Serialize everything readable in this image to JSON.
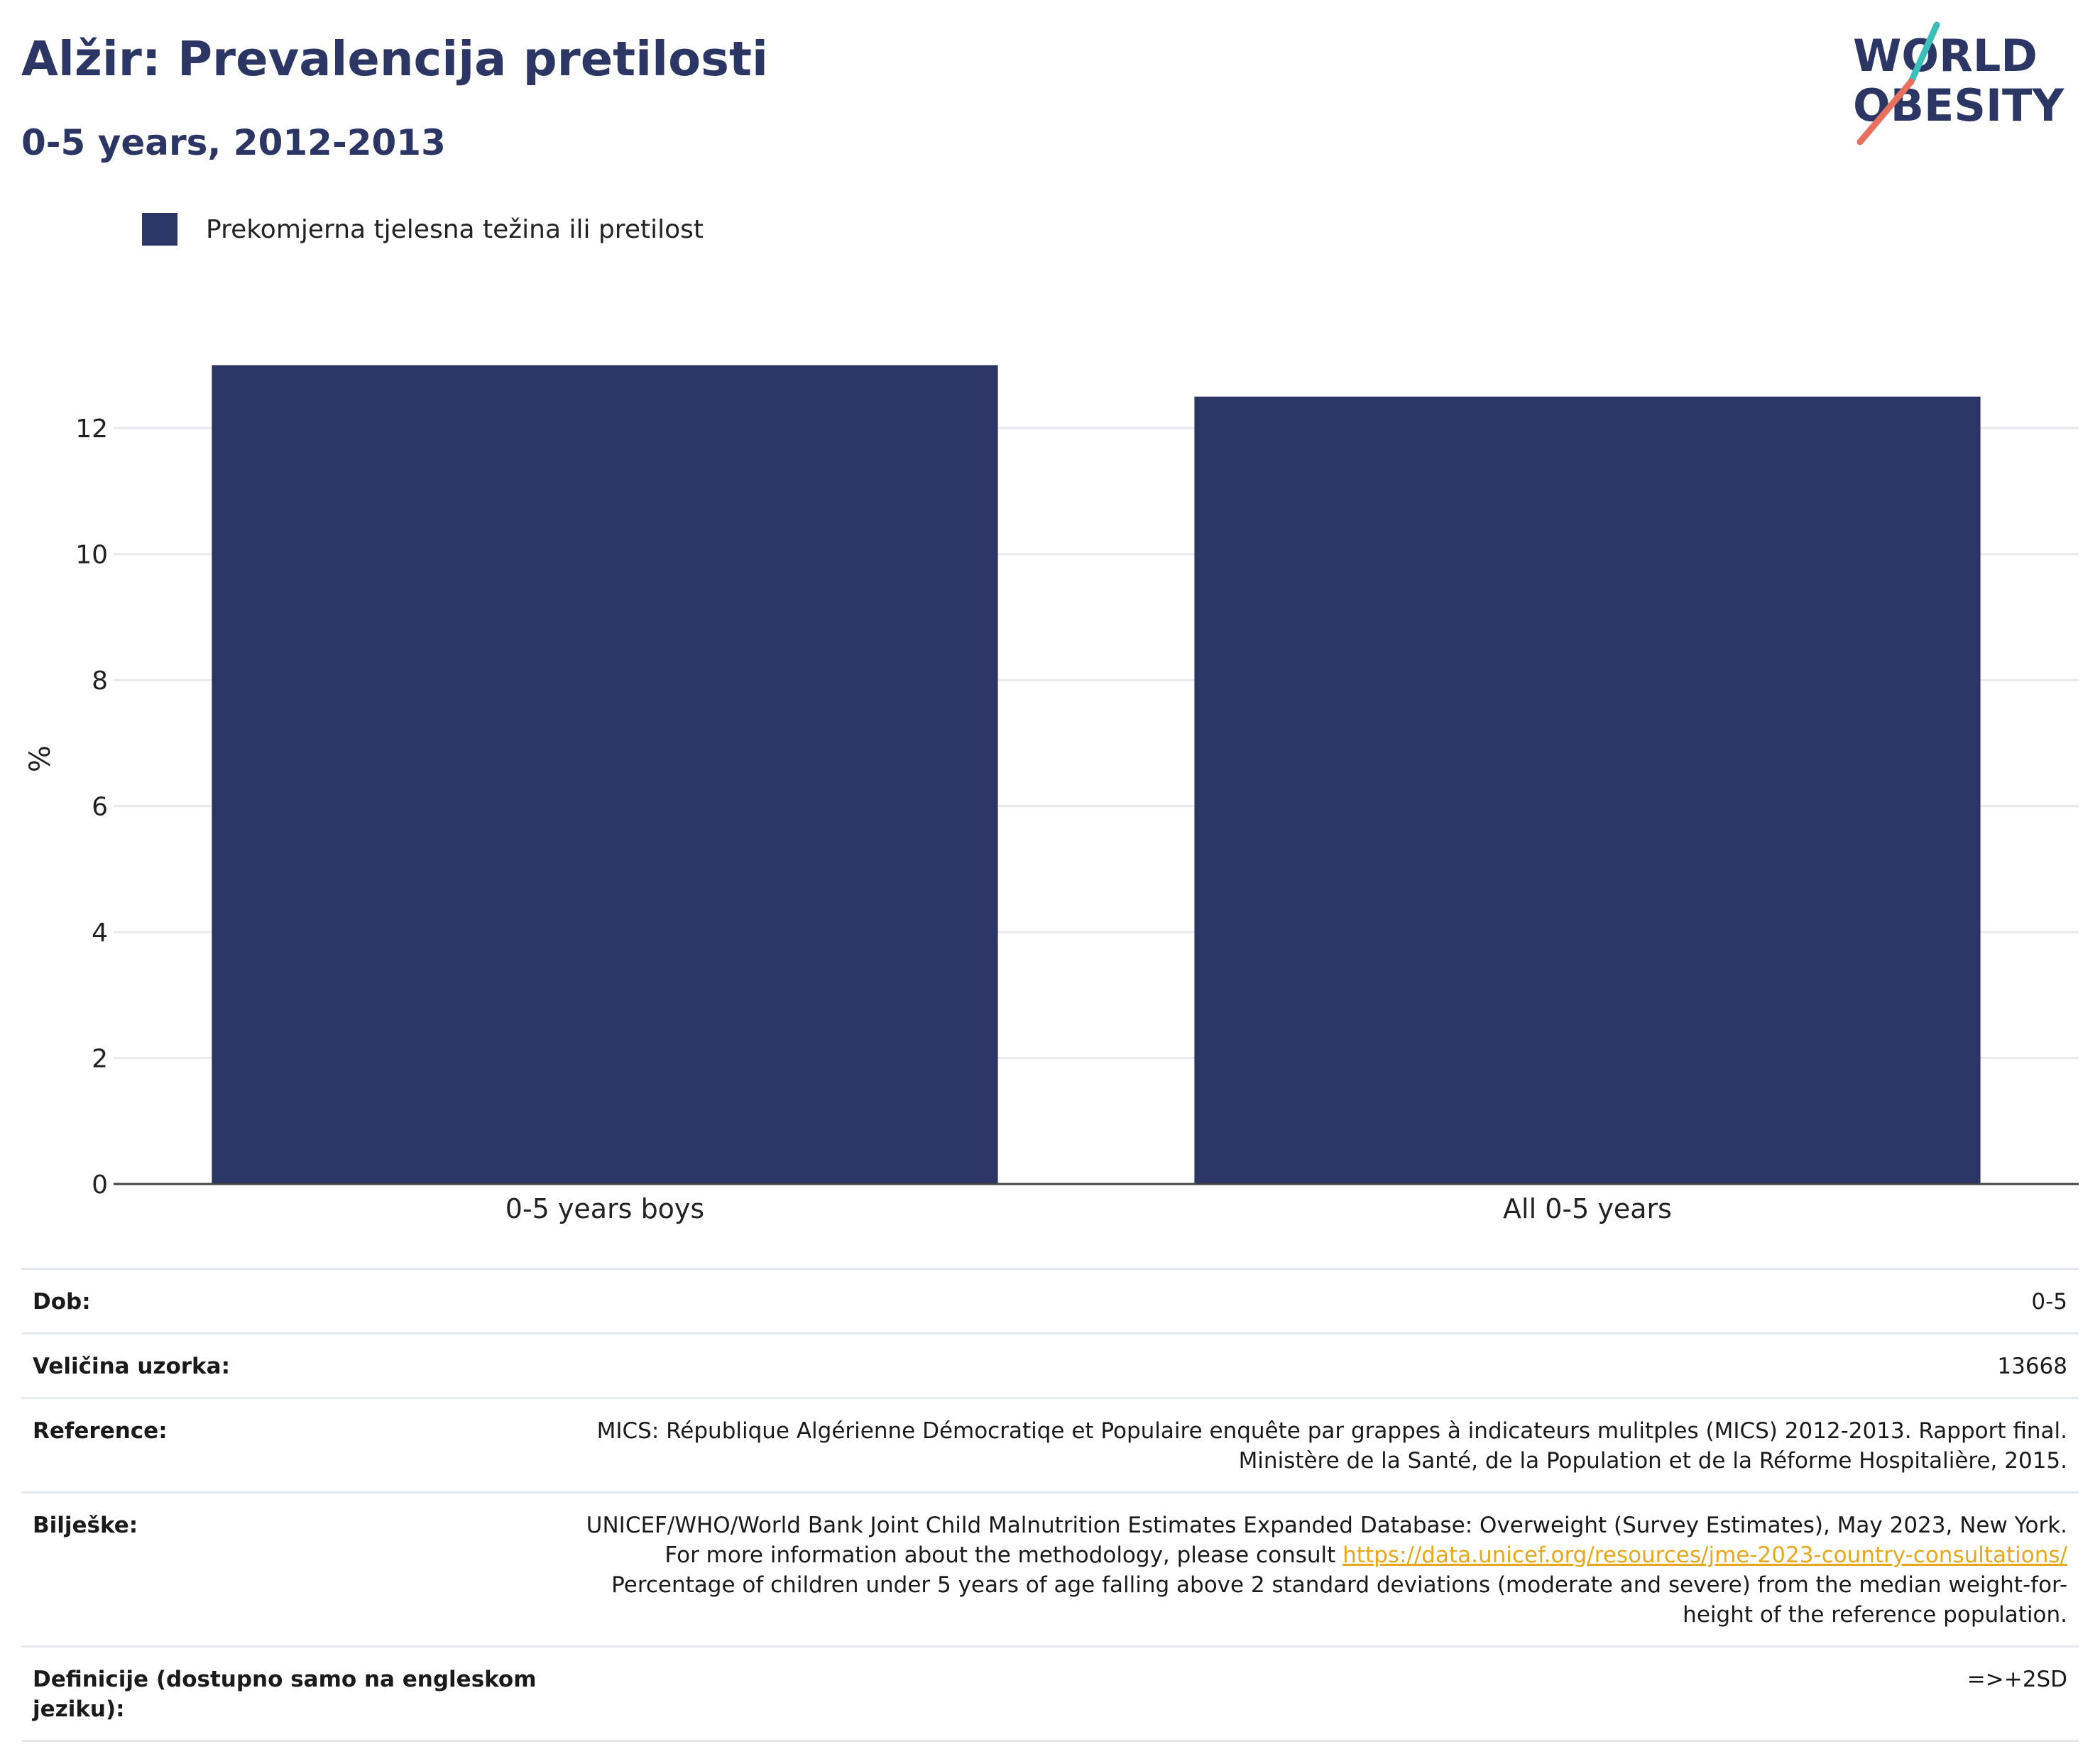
{
  "header": {
    "title": "Alžir: Prevalencija pretilosti",
    "subtitle": "0-5 years, 2012-2013",
    "logo_line1": "WORLD",
    "logo_line2": "OBESITY"
  },
  "colors": {
    "bar": "#2b3664",
    "title": "#2b3664",
    "link": "#e8a81d",
    "logo_teal": "#3bbfb6",
    "logo_coral": "#e8705e"
  },
  "chart_data": {
    "type": "bar",
    "categories": [
      "0-5 years boys",
      "All 0-5 years"
    ],
    "series": [
      {
        "name": "Prekomjerna tjelesna težina ili pretilost",
        "values": [
          13.0,
          12.5
        ]
      }
    ],
    "ylabel": "%",
    "xlabel": "",
    "ylim": [
      0,
      13.5
    ],
    "yticks": [
      0,
      2,
      4,
      6,
      8,
      10,
      12
    ],
    "grid": true,
    "legend_position": "top-left"
  },
  "info": {
    "rows": [
      {
        "label": "Dob:",
        "value": "0-5"
      },
      {
        "label": "Veličina uzorka:",
        "value": "13668"
      },
      {
        "label": "Reference:",
        "value": "MICS: République Algérienne Démocratiqe et Populaire enquête par grappes à indicateurs mulitples (MICS) 2012-2013. Rapport final. Ministère de la Santé, de la Population et de la Réforme Hospitalière, 2015."
      },
      {
        "label": "Bilješke:",
        "value_before": "UNICEF/WHO/World Bank Joint Child Malnutrition Estimates Expanded Database: Overweight (Survey Estimates), May 2023, New York. For more information about the methodology, please consult",
        "link": "https://data.unicef.org/resources/jme-2023-country-consultations/",
        "value_after": "Percentage of children under 5 years of age falling above 2 standard deviations (moderate and severe) from the median weight-for-height of the reference population."
      },
      {
        "label": "Definicije (dostupno samo na engleskom jeziku):",
        "value": "=>+2SD"
      }
    ]
  }
}
